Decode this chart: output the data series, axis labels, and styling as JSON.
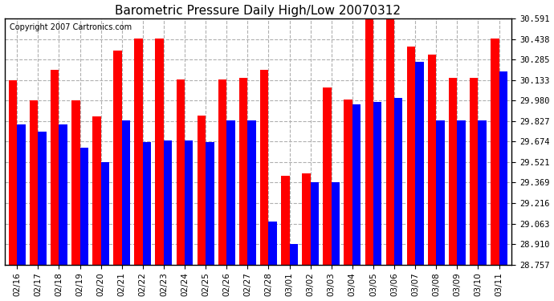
{
  "title": "Barometric Pressure Daily High/Low 20070312",
  "copyright": "Copyright 2007 Cartronics.com",
  "dates": [
    "02/16",
    "02/17",
    "02/18",
    "02/19",
    "02/20",
    "02/21",
    "02/22",
    "02/23",
    "02/24",
    "02/25",
    "02/26",
    "02/27",
    "02/28",
    "03/01",
    "03/02",
    "03/03",
    "03/04",
    "03/05",
    "03/06",
    "03/07",
    "03/08",
    "03/09",
    "03/10",
    "03/11"
  ],
  "highs": [
    30.13,
    29.98,
    30.21,
    29.98,
    29.86,
    30.35,
    30.44,
    30.44,
    30.14,
    29.87,
    30.14,
    30.15,
    30.21,
    29.42,
    29.44,
    30.08,
    29.99,
    30.59,
    30.59,
    30.38,
    30.32,
    30.15,
    30.15,
    30.44
  ],
  "lows": [
    29.8,
    29.75,
    29.8,
    29.63,
    29.52,
    29.83,
    29.67,
    29.68,
    29.68,
    29.67,
    29.83,
    29.83,
    29.08,
    28.91,
    29.37,
    29.37,
    29.95,
    29.97,
    30.0,
    30.27,
    29.83,
    29.83,
    29.83,
    30.2
  ],
  "ylim_min": 28.757,
  "ylim_max": 30.591,
  "yticks": [
    28.757,
    28.91,
    29.063,
    29.216,
    29.369,
    29.521,
    29.674,
    29.827,
    29.98,
    30.133,
    30.285,
    30.438,
    30.591
  ],
  "high_color": "#ff0000",
  "low_color": "#0000ff",
  "bg_color": "#ffffff",
  "plot_bg_color": "#ffffff",
  "grid_color": "#b0b0b0",
  "title_fontsize": 11,
  "copyright_fontsize": 7,
  "tick_fontsize": 7.5,
  "bar_width": 0.4
}
